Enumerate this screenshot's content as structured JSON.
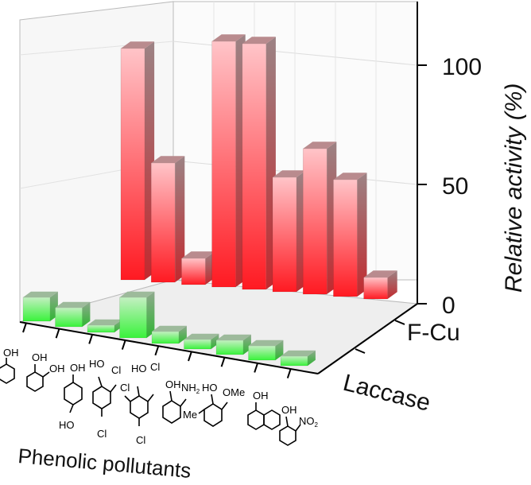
{
  "chart_data": {
    "type": "bar3d",
    "title": "",
    "xlabel": "Phenolic pollutants",
    "ylabel": "Relative activity (%)",
    "ylim": [
      0,
      115
    ],
    "yticks": [
      0,
      50,
      100
    ],
    "ytick_labels": [
      "0",
      "50",
      "100"
    ],
    "categories": [
      "Phenol",
      "Catechol",
      "Hydroquinone",
      "2,4-Dichlorophenol",
      "2,4,6-Trichlorophenol",
      "2-Aminophenol",
      "2,6-Dimethoxyphenol",
      "1-Naphthol",
      "2-Nitrophenol"
    ],
    "series": [
      {
        "name": "F-Cu",
        "values": [
          97,
          50,
          11,
          103,
          103,
          48,
          61,
          49,
          9
        ]
      },
      {
        "name": "Laccase",
        "values": [
          10,
          8,
          3,
          17,
          5,
          4,
          6,
          6,
          4
        ]
      }
    ],
    "depth_labels": [
      "F-Cu",
      "Laccase"
    ],
    "structure_text": {
      "oh": "OH",
      "cl": "Cl",
      "ho": "HO",
      "nh2": "NH",
      "nh2_sub": "2",
      "no2": "NO",
      "no2_sub": "2",
      "ome": "OMe",
      "meo": "MeO",
      "me": "Me"
    },
    "colors": {
      "fcu_top": "#ffc4c8",
      "fcu_bottom": "#ff1a22",
      "fcu_side": "#c96a6e",
      "laccase_top": "#c3f0c1",
      "laccase_bottom": "#39f23b",
      "laccase_side": "#8fbf8d",
      "floor": "#f2f2f2",
      "grid": "#d9d9d9"
    }
  }
}
